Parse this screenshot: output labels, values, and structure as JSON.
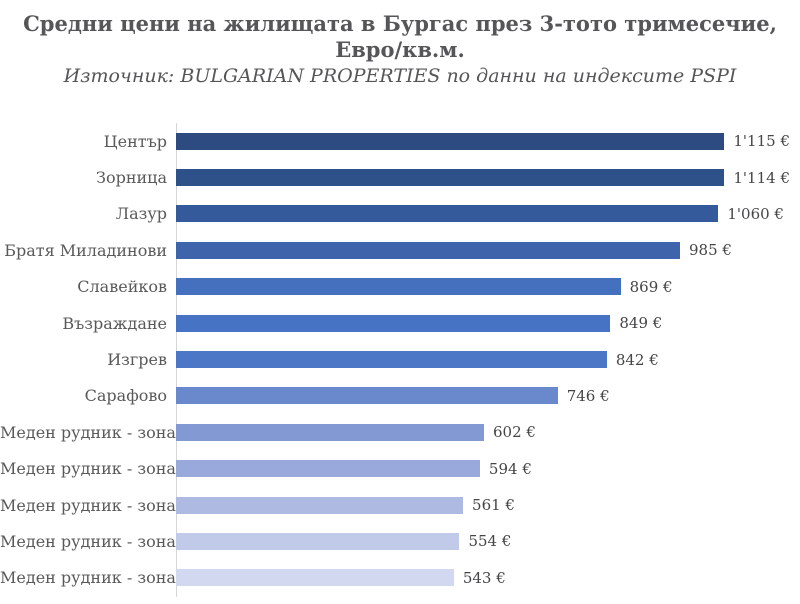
{
  "header": {
    "title_line1": "Средни цени на жилищата в Бургас през 3-тото тримесечие,",
    "title_line2": "Евро/кв.м.",
    "subtitle": "Източник: BULGARIAN PROPERTIES по данни на индексите PSPI"
  },
  "chart_data": {
    "type": "bar",
    "orientation": "horizontal",
    "title": "Средни цени на жилищата в Бургас през 3-тото тримесечие, Евро/кв.м.",
    "subtitle": "Източник: BULGARIAN PROPERTIES по данни на индексите PSPI",
    "xlabel": "",
    "ylabel": "",
    "xlim": [
      0,
      1200
    ],
    "grid": false,
    "legend": false,
    "axis_line_color": "#d6d6d6",
    "categories": [
      "Център",
      "Зорница",
      "Лазур",
      "Братя Миладинови",
      "Славейков",
      "Възраждане",
      "Изгрев",
      "Сарафово",
      "Меден рудник - зона Д",
      "Меден рудник - зона Г",
      "Меден рудник - зона А",
      "Меден рудник - зона Б",
      "Меден рудник - зона В"
    ],
    "values": [
      1115,
      1114,
      1060,
      985,
      869,
      849,
      842,
      746,
      602,
      594,
      561,
      554,
      543
    ],
    "value_labels": [
      "1'115 €",
      "1'114 €",
      "1'060 €",
      "985 €",
      "869 €",
      "849 €",
      "842 €",
      "746 €",
      "602 €",
      "594 €",
      "561 €",
      "554 €",
      "543 €"
    ],
    "bar_colors": [
      "#2d4b81",
      "#2f5189",
      "#355a9b",
      "#3e64ac",
      "#4570bd",
      "#4673c3",
      "#4b77c6",
      "#6a89cd",
      "#8399d4",
      "#99a9db",
      "#aebae2",
      "#c1cae9",
      "#d1d8ef"
    ]
  },
  "colors": {
    "title_text": "#565658",
    "label_text": "#595959",
    "value_text": "#454547",
    "background": "#ffffff"
  }
}
